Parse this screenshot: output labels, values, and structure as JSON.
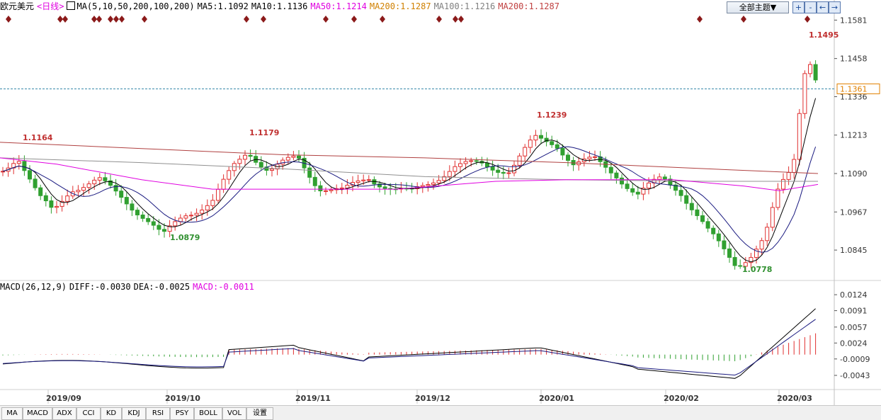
{
  "header": {
    "symbol": "欧元美元",
    "period": "<日线>",
    "ma_params": "MA(5,10,50,200,100,200)",
    "ma_values": [
      {
        "label": "MA5:1.1092",
        "color": "#000000"
      },
      {
        "label": "MA10:1.1136",
        "color": "#000000"
      },
      {
        "label": "MA50:1.1214",
        "color": "#e000e0"
      },
      {
        "label": "MA200:1.1287",
        "color": "#d08000"
      },
      {
        "label": "MA100:1.1216",
        "color": "#808080"
      },
      {
        "label": "MA200:1.1287",
        "color": "#c04040"
      }
    ],
    "theme_button": "全部主题▼",
    "tool_buttons": [
      "+",
      "-",
      "←",
      "→"
    ]
  },
  "macd_header": {
    "params": "MACD(26,12,9)",
    "diff": "DIFF:-0.0030",
    "dea": "DEA:-0.0025",
    "macd": "MACD:-0.0011"
  },
  "tabs": [
    "MA",
    "MACD",
    "ADX",
    "CCI",
    "KD",
    "KDJ",
    "RSI",
    "PSY",
    "BOLL",
    "VOL",
    "设置"
  ],
  "chart_data": {
    "type": "candlestick",
    "price_axis_ticks": [
      "1.1581",
      "1.1458",
      "1.1336",
      "1.1213",
      "1.1090",
      "1.0967",
      "1.0845"
    ],
    "price_ylim": [
      1.075,
      1.16
    ],
    "current_price": "1.1361",
    "annotations": [
      "1.1164",
      "1.1179",
      "1.1239",
      "1.1495",
      "1.0879",
      "1.0778"
    ],
    "x_labels": [
      "2019/09",
      "2019/10",
      "2019/11",
      "2019/12",
      "2020/01",
      "2020/02",
      "2020/03"
    ],
    "macd_axis_ticks": [
      "0.0124",
      "0.0091",
      "0.0057",
      "0.0024",
      "-0.0009",
      "-0.0043"
    ],
    "macd_ylim": [
      -0.0065,
      0.013
    ],
    "colors": {
      "up": "#e03030",
      "down": "#30a030",
      "grid": "#e8e8e8",
      "marker": "#8b1a1a"
    }
  }
}
